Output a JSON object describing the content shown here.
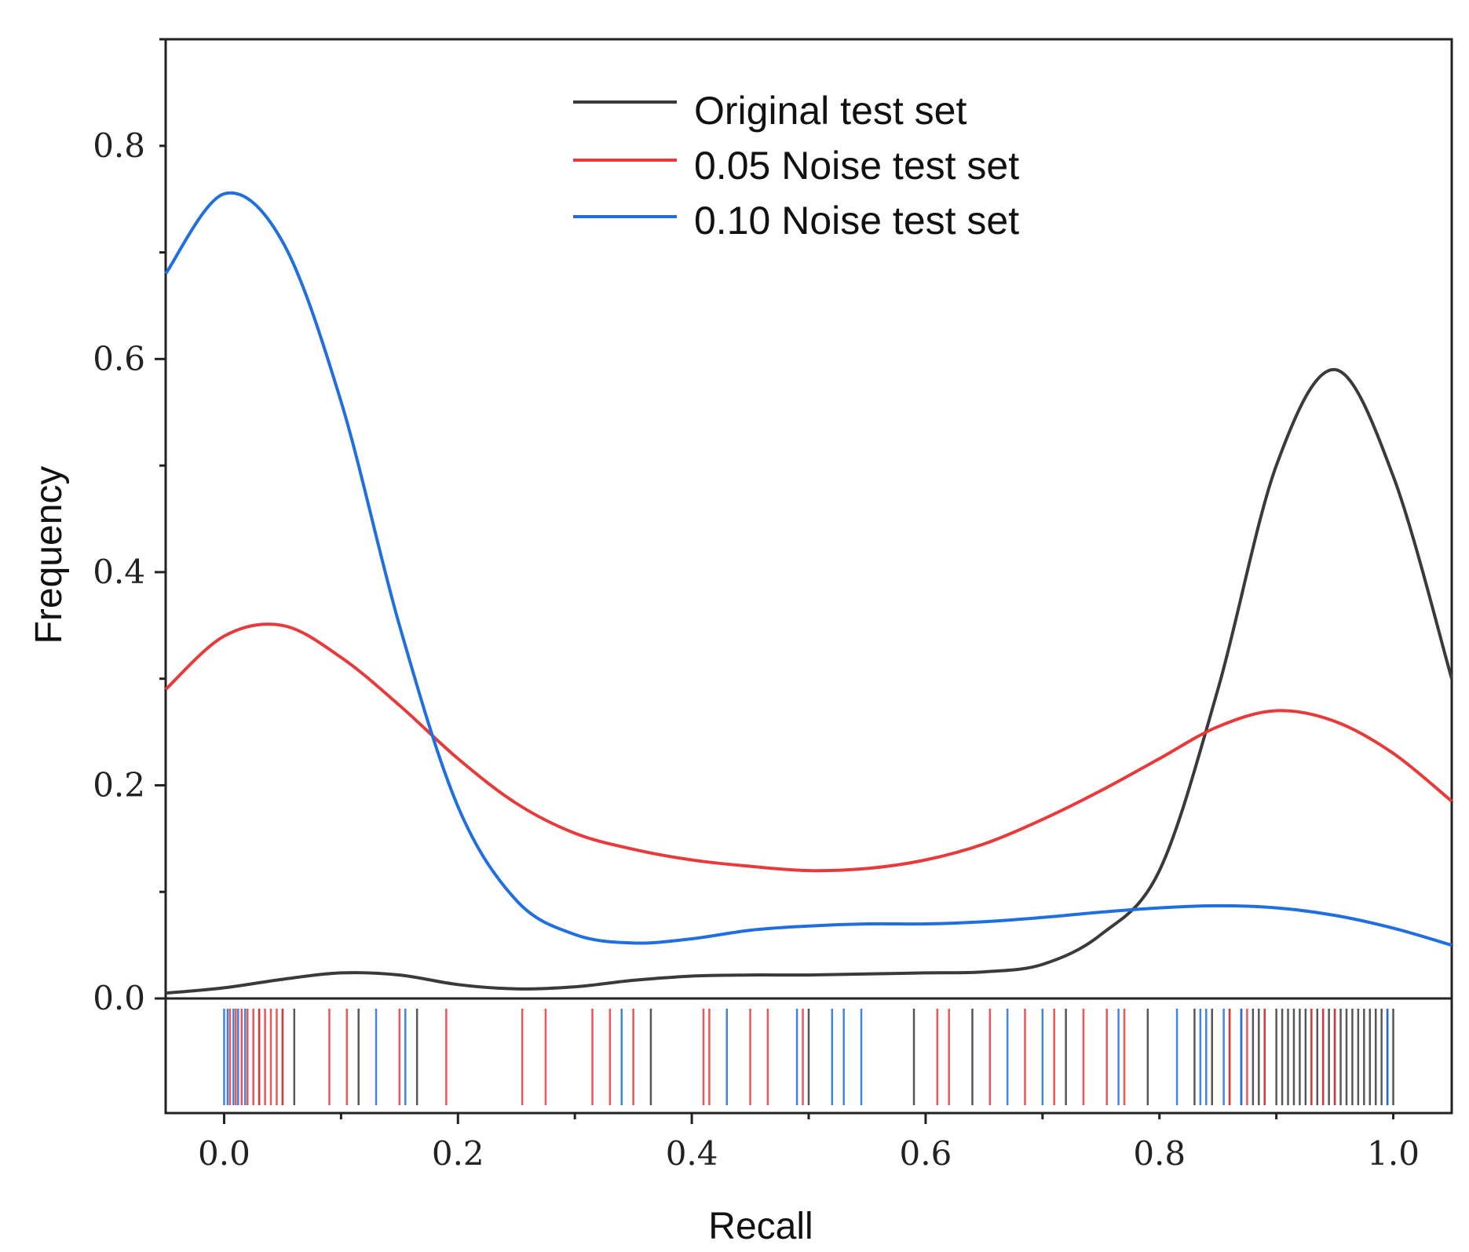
{
  "chart_data": {
    "type": "line",
    "subtype": "kde-with-rug",
    "title": "",
    "xlabel": "Recall",
    "ylabel": "Frequency",
    "xlim": [
      -0.05,
      1.05
    ],
    "ylim": [
      0.0,
      0.9
    ],
    "x_ticks": [
      0.0,
      0.2,
      0.4,
      0.6,
      0.8,
      1.0
    ],
    "x_tick_labels": [
      "0.0",
      "0.2",
      "0.4",
      "0.6",
      "0.8",
      "1.0"
    ],
    "y_ticks": [
      0.0,
      0.2,
      0.4,
      0.6,
      0.8
    ],
    "y_tick_labels": [
      "0.0",
      "0.2",
      "0.4",
      "0.6",
      "0.8"
    ],
    "legend_position": "top-center",
    "series": [
      {
        "name": "Original test set",
        "color": "#3a3a3a",
        "x": [
          -0.05,
          0.0,
          0.05,
          0.1,
          0.15,
          0.2,
          0.25,
          0.3,
          0.35,
          0.4,
          0.45,
          0.5,
          0.55,
          0.6,
          0.65,
          0.7,
          0.75,
          0.8,
          0.85,
          0.9,
          0.95,
          1.0,
          1.05
        ],
        "y": [
          0.005,
          0.01,
          0.018,
          0.024,
          0.022,
          0.013,
          0.009,
          0.011,
          0.017,
          0.021,
          0.022,
          0.022,
          0.023,
          0.024,
          0.025,
          0.032,
          0.06,
          0.12,
          0.29,
          0.5,
          0.59,
          0.49,
          0.3
        ]
      },
      {
        "name": "0.05 Noise test set",
        "color": "#e83a3a",
        "x": [
          -0.05,
          0.0,
          0.05,
          0.1,
          0.15,
          0.2,
          0.25,
          0.3,
          0.35,
          0.4,
          0.45,
          0.5,
          0.55,
          0.6,
          0.65,
          0.7,
          0.75,
          0.8,
          0.85,
          0.9,
          0.95,
          1.0,
          1.05
        ],
        "y": [
          0.29,
          0.34,
          0.35,
          0.32,
          0.275,
          0.225,
          0.183,
          0.155,
          0.14,
          0.13,
          0.124,
          0.12,
          0.122,
          0.13,
          0.145,
          0.168,
          0.195,
          0.225,
          0.255,
          0.27,
          0.26,
          0.23,
          0.185
        ]
      },
      {
        "name": "0.10 Noise test set",
        "color": "#1f6fe0",
        "x": [
          -0.05,
          0.0,
          0.05,
          0.1,
          0.15,
          0.2,
          0.25,
          0.3,
          0.35,
          0.4,
          0.45,
          0.5,
          0.55,
          0.6,
          0.65,
          0.7,
          0.75,
          0.8,
          0.85,
          0.9,
          0.95,
          1.0,
          1.05
        ],
        "y": [
          0.68,
          0.755,
          0.71,
          0.56,
          0.35,
          0.18,
          0.092,
          0.06,
          0.052,
          0.056,
          0.064,
          0.068,
          0.07,
          0.07,
          0.072,
          0.076,
          0.081,
          0.085,
          0.087,
          0.085,
          0.078,
          0.066,
          0.05
        ]
      }
    ],
    "rug": {
      "Original test set": [
        0.03,
        0.05,
        0.06,
        0.115,
        0.165,
        0.365,
        0.5,
        0.59,
        0.64,
        0.72,
        0.79,
        0.83,
        0.845,
        0.86,
        0.87,
        0.88,
        0.885,
        0.89,
        0.9,
        0.905,
        0.91,
        0.915,
        0.92,
        0.925,
        0.93,
        0.935,
        0.94,
        0.945,
        0.95,
        0.955,
        0.96,
        0.965,
        0.97,
        0.975,
        0.98,
        0.985,
        0.99,
        0.995,
        1.0
      ],
      "0.05 Noise test set": [
        0.005,
        0.01,
        0.015,
        0.02,
        0.025,
        0.03,
        0.035,
        0.04,
        0.045,
        0.05,
        0.09,
        0.105,
        0.15,
        0.19,
        0.255,
        0.275,
        0.315,
        0.33,
        0.35,
        0.41,
        0.415,
        0.45,
        0.465,
        0.495,
        0.61,
        0.62,
        0.655,
        0.685,
        0.71,
        0.735,
        0.755,
        0.77,
        0.86,
        0.875,
        0.89,
        0.93,
        0.94,
        0.95
      ],
      "0.10 Noise test set": [
        0.0,
        0.003,
        0.008,
        0.012,
        0.018,
        0.13,
        0.155,
        0.34,
        0.43,
        0.49,
        0.52,
        0.53,
        0.545,
        0.67,
        0.7,
        0.765,
        0.815,
        0.835,
        0.84,
        0.855,
        0.87,
        0.995
      ]
    }
  }
}
